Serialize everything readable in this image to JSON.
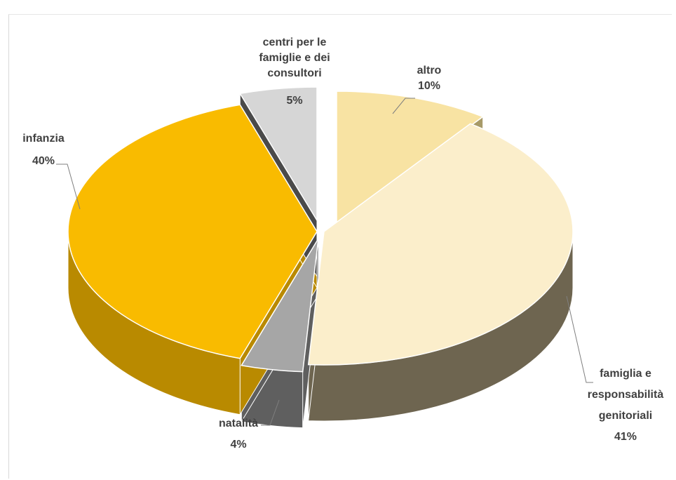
{
  "chart_data": {
    "type": "pie",
    "style": "3d-exploded",
    "slices": [
      {
        "label": "altro",
        "value": 10,
        "percent_label": "10%",
        "top_color": "#f8e3a3",
        "side_color": "#a79a68"
      },
      {
        "label": "famiglia e responsabilità genitoriali",
        "label_lines": [
          "famiglia e",
          "responsabilità",
          "genitoriali"
        ],
        "value": 41,
        "percent_label": "41%",
        "top_color": "#fbeecb",
        "side_color": "#6e6550"
      },
      {
        "label": "natalità",
        "value": 4,
        "percent_label": "4%",
        "top_color": "#a6a6a6",
        "side_color": "#5f5f5f"
      },
      {
        "label": "infanzia",
        "value": 40,
        "percent_label": "40%",
        "top_color": "#f9bb00",
        "side_color": "#b98a00"
      },
      {
        "label": "centri per le famiglie e dei consultori",
        "label_lines": [
          "centri per le",
          "famiglie e dei",
          "consultori"
        ],
        "value": 5,
        "percent_label": "5%",
        "top_color": "#d6d6d6",
        "side_color": "#4a4a4a"
      }
    ]
  }
}
